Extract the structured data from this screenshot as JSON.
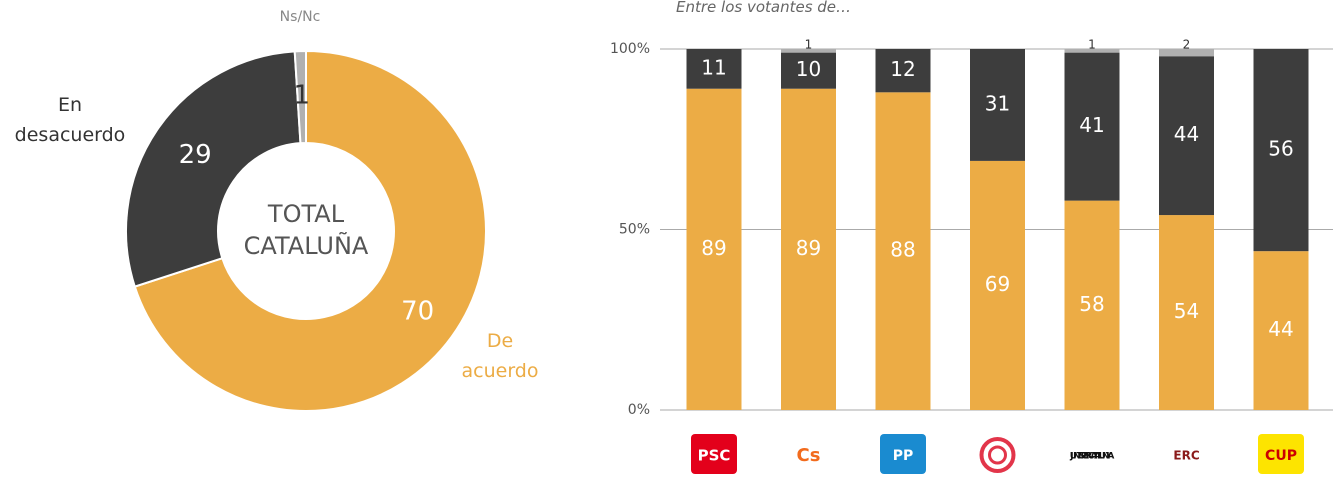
{
  "chart_data": [
    {
      "type": "pie",
      "donut": true,
      "center_label": [
        "TOTAL",
        "CATALUÑA"
      ],
      "categories": [
        "De acuerdo",
        "En desacuerdo",
        "Ns/Nc"
      ],
      "values": [
        70,
        29,
        1
      ],
      "colors": [
        "#ecac45",
        "#3d3d3d",
        "#b0b0b0"
      ]
    },
    {
      "type": "bar",
      "stacked": true,
      "subtitle": "Entre los votantes de…",
      "categories": [
        "PSC",
        "Cs",
        "PP",
        null,
        "JUNTS PER CATALUNYA",
        "ERC",
        "CUP"
      ],
      "series": [
        {
          "color": "#ecac45",
          "values": [
            89,
            89,
            88,
            69,
            58,
            54,
            44
          ]
        },
        {
          "color": "#3d3d3d",
          "values": [
            11,
            10,
            12,
            31,
            41,
            44,
            56
          ]
        },
        {
          "color": "#b0b0b0",
          "values": [
            null,
            1,
            null,
            null,
            1,
            2,
            null
          ]
        }
      ],
      "ylim": [
        0,
        100
      ],
      "yticks": [
        {
          "value": 0,
          "label": "0%"
        },
        {
          "value": 50,
          "label": "50%"
        },
        {
          "value": 100,
          "label": "100%"
        }
      ],
      "grid": true
    }
  ]
}
